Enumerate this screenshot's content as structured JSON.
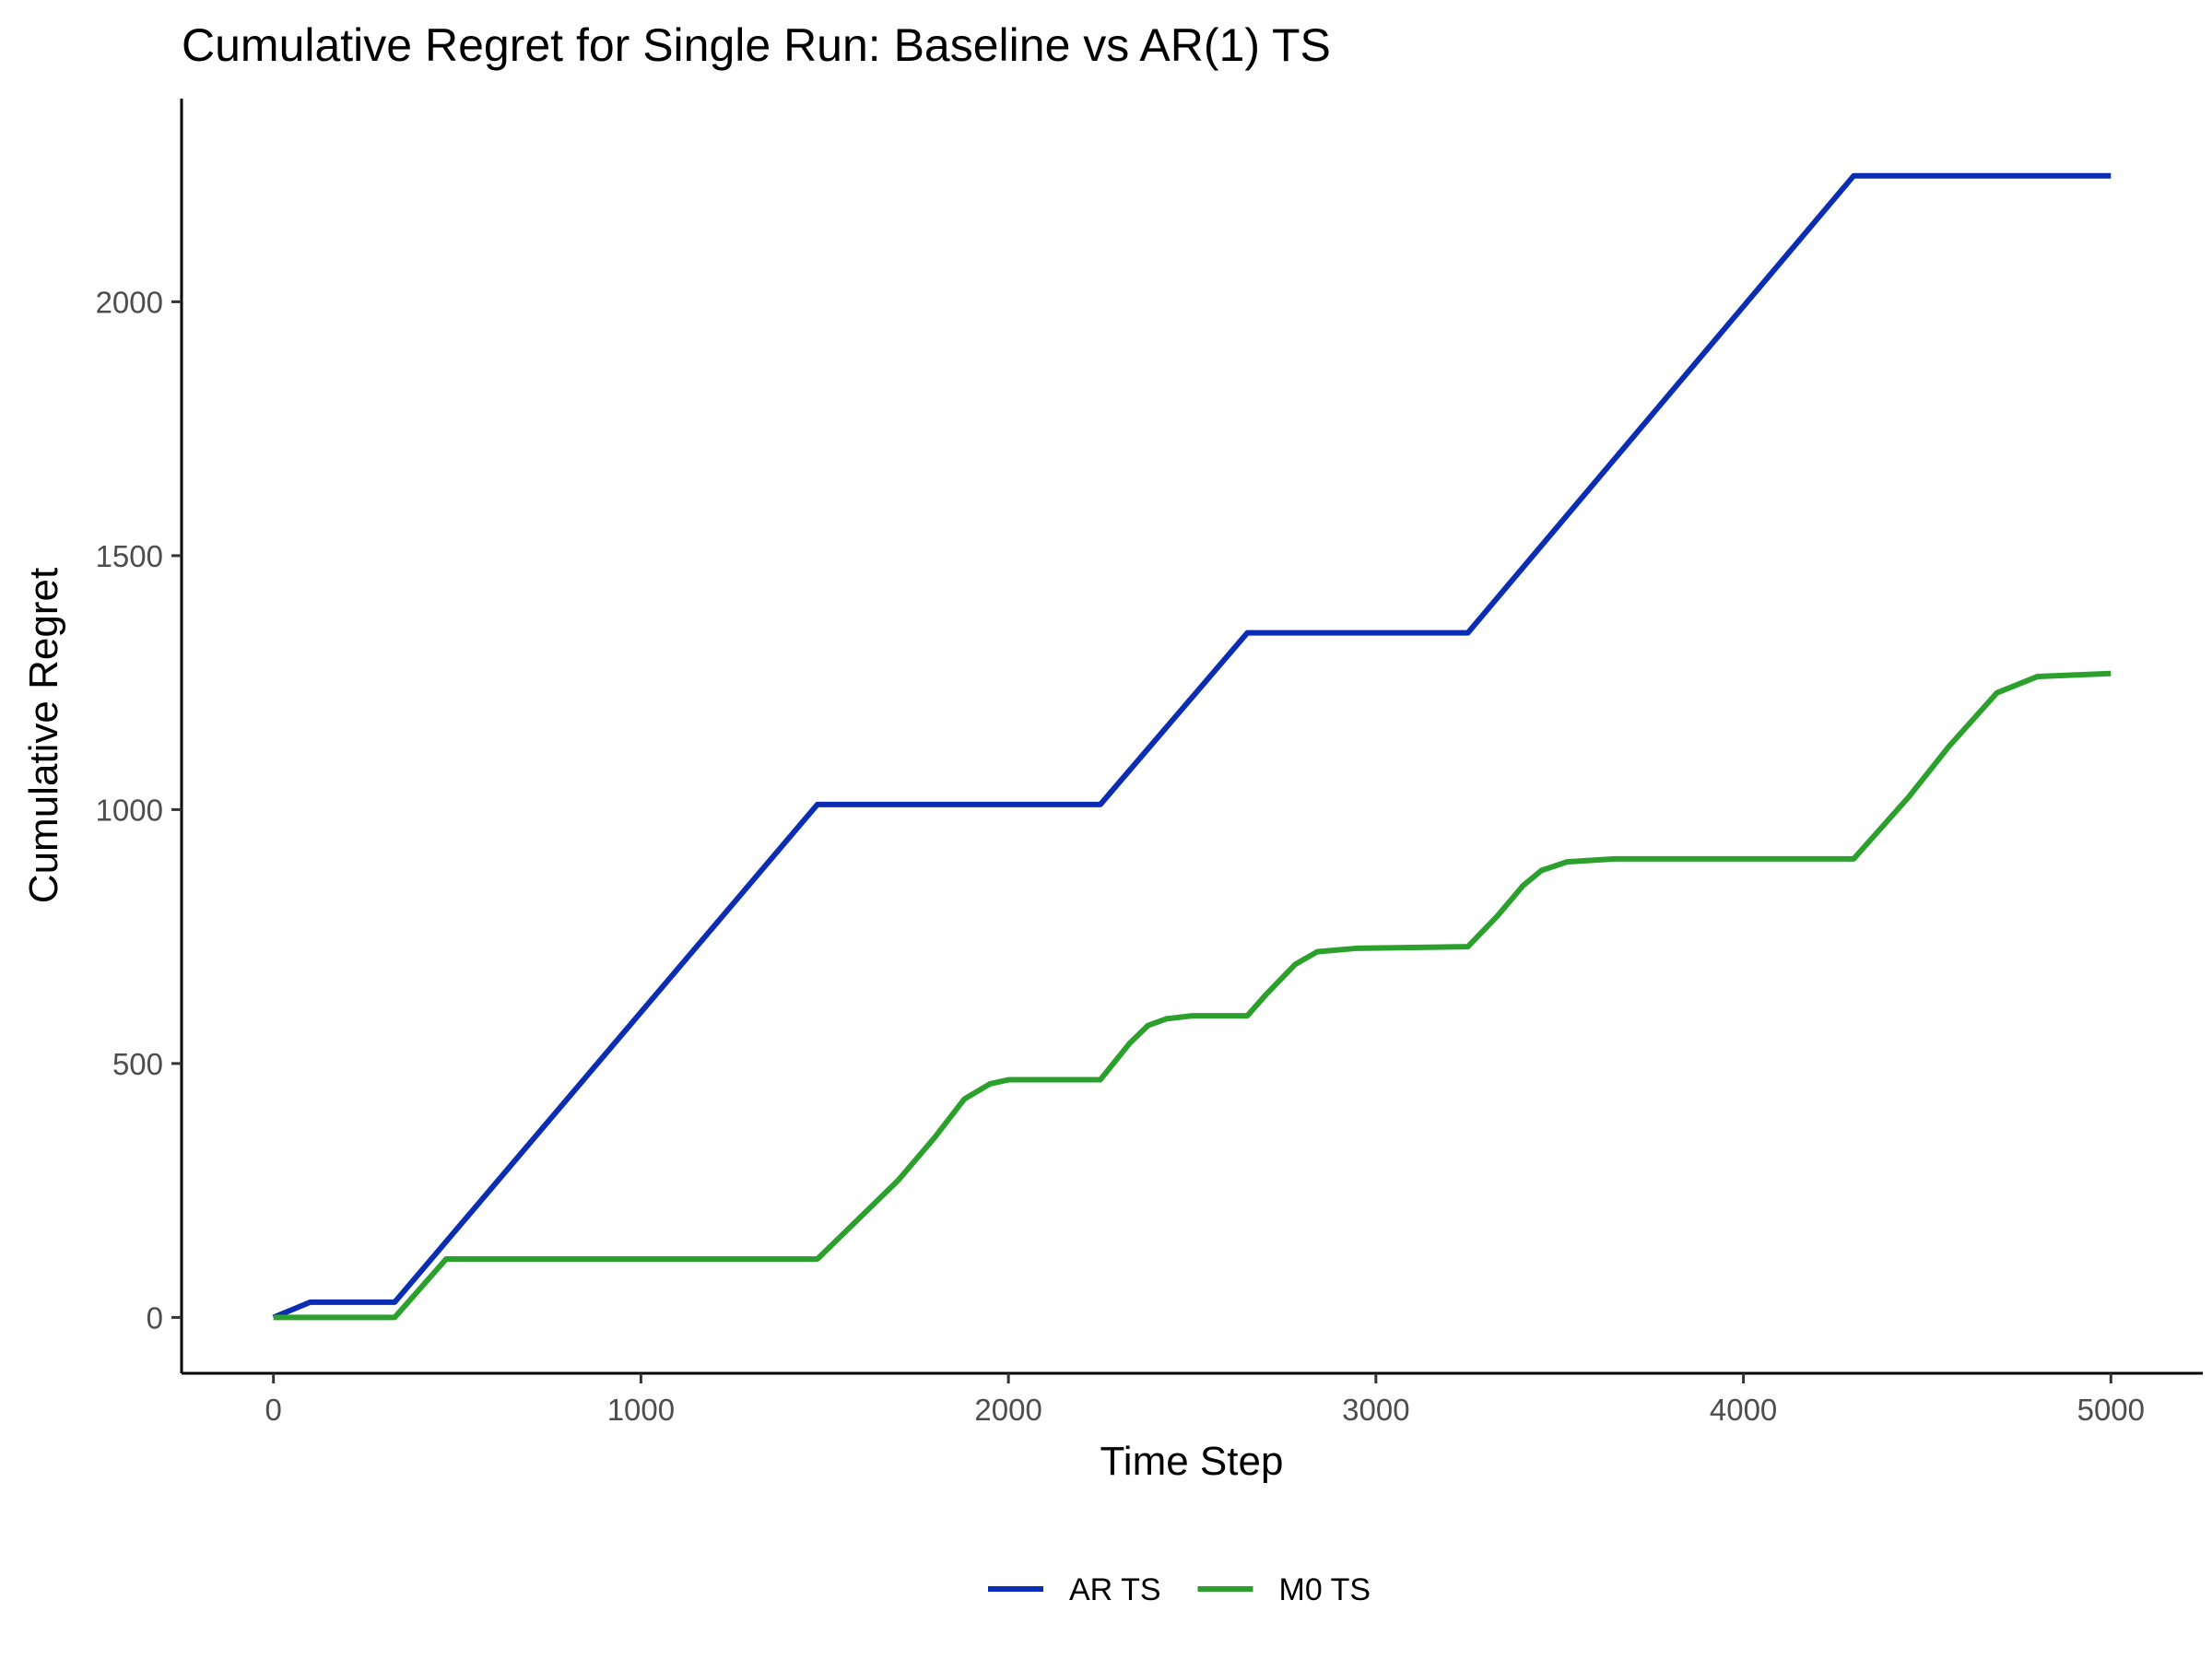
{
  "chart_data": {
    "type": "line",
    "title": "Cumulative Regret for Single Run: Baseline vs AR(1) TS",
    "xlabel": "Time Step",
    "ylabel": "Cumulative Regret",
    "xlim": [
      -250,
      5250
    ],
    "ylim": [
      -110,
      2400
    ],
    "xticks": [
      0,
      1000,
      2000,
      3000,
      4000,
      5000
    ],
    "yticks": [
      0,
      500,
      1000,
      1500,
      2000
    ],
    "grid": false,
    "legend_position": "bottom",
    "series": [
      {
        "name": "AR TS",
        "color": "#0a2db4",
        "points": [
          [
            0,
            0
          ],
          [
            50,
            15
          ],
          [
            100,
            30
          ],
          [
            330,
            30
          ],
          [
            1480,
            1010
          ],
          [
            2250,
            1010
          ],
          [
            2650,
            1348
          ],
          [
            3250,
            1348
          ],
          [
            4300,
            2248
          ],
          [
            5000,
            2248
          ]
        ]
      },
      {
        "name": "M0 TS",
        "color": "#2ca02c",
        "points": [
          [
            0,
            0
          ],
          [
            330,
            0
          ],
          [
            470,
            115
          ],
          [
            1480,
            115
          ],
          [
            1700,
            270
          ],
          [
            1800,
            355
          ],
          [
            1880,
            430
          ],
          [
            1950,
            460
          ],
          [
            2000,
            468
          ],
          [
            2250,
            468
          ],
          [
            2330,
            540
          ],
          [
            2380,
            575
          ],
          [
            2430,
            588
          ],
          [
            2500,
            594
          ],
          [
            2650,
            594
          ],
          [
            2700,
            635
          ],
          [
            2780,
            695
          ],
          [
            2840,
            720
          ],
          [
            2950,
            727
          ],
          [
            3250,
            730
          ],
          [
            3330,
            790
          ],
          [
            3400,
            850
          ],
          [
            3450,
            880
          ],
          [
            3520,
            897
          ],
          [
            3650,
            903
          ],
          [
            4300,
            903
          ],
          [
            4450,
            1025
          ],
          [
            4560,
            1125
          ],
          [
            4690,
            1230
          ],
          [
            4800,
            1262
          ],
          [
            5000,
            1268
          ]
        ]
      }
    ]
  }
}
